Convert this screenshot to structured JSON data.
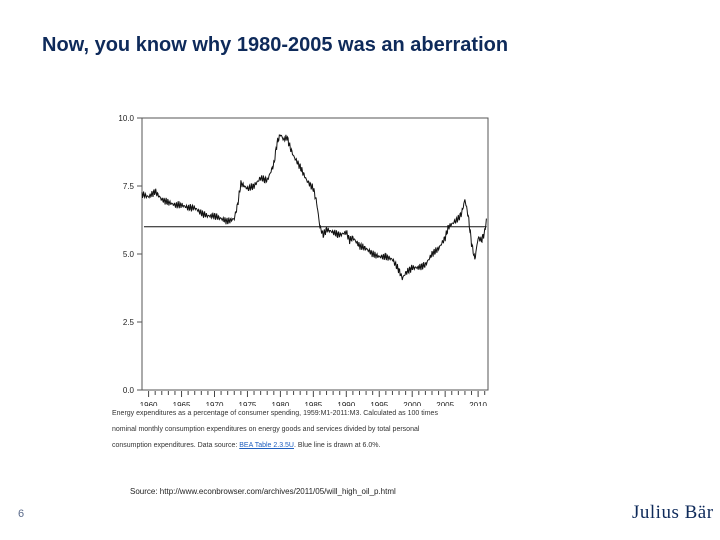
{
  "slide": {
    "title": "Now, you know why 1980-2005 was an aberration",
    "source": "Source: http://www.econbrowser.com/archives/2011/05/will_high_oil_p.html",
    "page_number": "6",
    "logo_text": "Julius Bär"
  },
  "caption": {
    "line1": "Energy expenditures as a percentage of consumer spending, 1959:M1-2011:M3. Calculated as 100 times",
    "line2": "nominal monthly consumption expenditures on energy goods and services divided by total personal",
    "line3_pre": "consumption expenditures. Data source: ",
    "line3_link": "BEA Table 2.3.5U",
    "line3_post": ". Blue line is drawn at 6.0%."
  },
  "colors": {
    "title": "#0e2a5a",
    "series": "#111111",
    "reference_line": "#111111",
    "link": "#1f5fbf"
  },
  "chart_data": {
    "type": "line",
    "xlim": [
      1959,
      2011.5
    ],
    "ylim": [
      0,
      10
    ],
    "x_ticks": [
      1960,
      1965,
      1970,
      1975,
      1980,
      1985,
      1990,
      1995,
      2000,
      2005,
      2010
    ],
    "y_ticks": [
      "0.0",
      "2.5",
      "5.0",
      "7.5",
      "10.0"
    ],
    "reference_line": 6.0,
    "series": [
      {
        "x": [
          1959.0,
          1960.0,
          1961.0,
          1962.0,
          1963.0,
          1964.0,
          1965.0,
          1966.0,
          1967.0,
          1968.0,
          1969.0,
          1970.0,
          1971.0,
          1972.0,
          1973.0,
          1973.5,
          1974.0,
          1974.5,
          1975.0,
          1976.0,
          1977.0,
          1978.0,
          1979.0,
          1979.5,
          1980.0,
          1980.5,
          1981.0,
          1981.5,
          1982.0,
          1983.0,
          1984.0,
          1985.0,
          1985.5,
          1986.0,
          1986.5,
          1987.0,
          1988.0,
          1989.0,
          1990.0,
          1990.5,
          1991.0,
          1992.0,
          1993.0,
          1994.0,
          1995.0,
          1996.0,
          1997.0,
          1998.0,
          1998.5,
          1999.0,
          2000.0,
          2001.0,
          2002.0,
          2003.0,
          2004.0,
          2005.0,
          2005.5,
          2006.0,
          2007.0,
          2007.5,
          2008.0,
          2008.5,
          2009.0,
          2009.5,
          2010.0,
          2010.5,
          2011.0,
          2011.25
        ],
        "y": [
          7.2,
          7.1,
          7.3,
          7.0,
          6.9,
          6.8,
          6.8,
          6.7,
          6.7,
          6.5,
          6.4,
          6.4,
          6.3,
          6.2,
          6.3,
          6.8,
          7.6,
          7.5,
          7.4,
          7.5,
          7.8,
          7.7,
          8.3,
          9.1,
          9.4,
          9.2,
          9.3,
          8.9,
          8.6,
          8.2,
          7.7,
          7.4,
          6.9,
          6.0,
          5.7,
          5.9,
          5.8,
          5.7,
          5.8,
          5.5,
          5.6,
          5.3,
          5.2,
          5.0,
          4.9,
          4.9,
          4.8,
          4.4,
          4.1,
          4.3,
          4.5,
          4.5,
          4.6,
          5.0,
          5.2,
          5.6,
          6.0,
          6.1,
          6.3,
          6.5,
          7.0,
          6.4,
          5.4,
          4.8,
          5.6,
          5.5,
          5.8,
          6.3
        ]
      }
    ]
  }
}
